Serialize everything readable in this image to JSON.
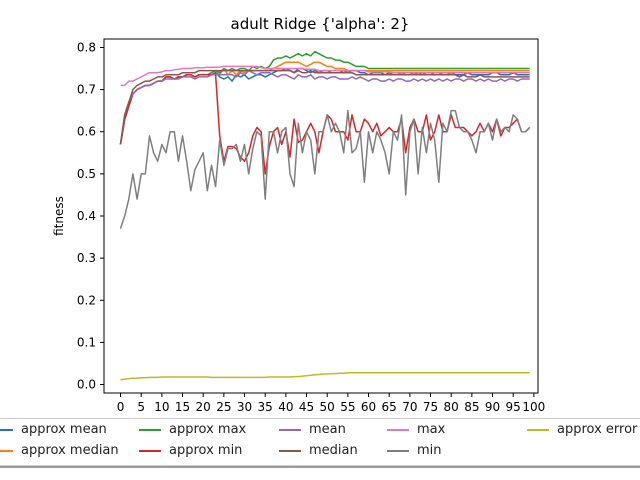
{
  "chart_data": {
    "type": "line",
    "title": "adult Ridge {'alpha': 2}",
    "xlabel": "",
    "ylabel": "fitness",
    "xlim": [
      -4,
      101
    ],
    "ylim": [
      -0.02,
      0.82
    ],
    "x_ticks": [
      0,
      5,
      10,
      15,
      20,
      25,
      30,
      35,
      40,
      45,
      50,
      55,
      60,
      65,
      70,
      75,
      80,
      85,
      90,
      95,
      100
    ],
    "y_ticks": [
      0.0,
      0.1,
      0.2,
      0.3,
      0.4,
      0.5,
      0.6,
      0.7,
      0.8
    ],
    "grid": false,
    "legend_position": "bottom",
    "x": [
      0,
      1,
      2,
      3,
      4,
      5,
      6,
      7,
      8,
      9,
      10,
      11,
      12,
      13,
      14,
      15,
      16,
      17,
      18,
      19,
      20,
      21,
      22,
      23,
      24,
      25,
      26,
      27,
      28,
      29,
      30,
      31,
      32,
      33,
      34,
      35,
      36,
      37,
      38,
      39,
      40,
      41,
      42,
      43,
      44,
      45,
      46,
      47,
      48,
      49,
      50,
      51,
      52,
      53,
      54,
      55,
      56,
      57,
      58,
      59,
      60,
      61,
      62,
      63,
      64,
      65,
      66,
      67,
      68,
      69,
      70,
      71,
      72,
      73,
      74,
      75,
      76,
      77,
      78,
      79,
      80,
      81,
      82,
      83,
      84,
      85,
      86,
      87,
      88,
      89,
      90,
      91,
      92,
      93,
      94,
      95,
      96,
      97,
      98,
      99
    ],
    "series": [
      {
        "name": "approx mean",
        "color": "#1f77b4",
        "values": [
          0.57,
          0.63,
          0.66,
          0.69,
          0.7,
          0.705,
          0.71,
          0.71,
          0.715,
          0.72,
          0.72,
          0.73,
          0.73,
          0.725,
          0.73,
          0.73,
          0.735,
          0.735,
          0.73,
          0.735,
          0.735,
          0.735,
          0.735,
          0.74,
          0.73,
          0.725,
          0.73,
          0.72,
          0.735,
          0.73,
          0.735,
          0.725,
          0.73,
          0.735,
          0.735,
          0.73,
          0.735,
          0.74,
          0.745,
          0.745,
          0.75,
          0.745,
          0.74,
          0.75,
          0.75,
          0.745,
          0.74,
          0.745,
          0.74,
          0.745,
          0.745,
          0.74,
          0.74,
          0.74,
          0.745,
          0.74,
          0.745,
          0.745,
          0.74,
          0.74,
          0.735,
          0.74,
          0.74,
          0.74,
          0.735,
          0.74,
          0.735,
          0.735,
          0.74,
          0.735,
          0.735,
          0.74,
          0.735,
          0.74,
          0.735,
          0.735,
          0.74,
          0.74,
          0.735,
          0.735,
          0.74,
          0.735,
          0.735,
          0.735,
          0.74,
          0.735,
          0.735,
          0.735,
          0.735,
          0.735,
          0.74,
          0.74,
          0.735,
          0.735,
          0.735,
          0.74,
          0.735,
          0.735,
          0.735,
          0.735
        ]
      },
      {
        "name": "approx median",
        "color": "#ff7f0e",
        "values": [
          0.57,
          0.63,
          0.66,
          0.69,
          0.7,
          0.705,
          0.71,
          0.71,
          0.715,
          0.72,
          0.72,
          0.73,
          0.73,
          0.725,
          0.73,
          0.73,
          0.735,
          0.735,
          0.73,
          0.735,
          0.735,
          0.735,
          0.74,
          0.745,
          0.735,
          0.75,
          0.735,
          0.745,
          0.735,
          0.745,
          0.74,
          0.745,
          0.745,
          0.745,
          0.745,
          0.745,
          0.745,
          0.75,
          0.755,
          0.76,
          0.765,
          0.765,
          0.765,
          0.765,
          0.76,
          0.755,
          0.76,
          0.765,
          0.765,
          0.76,
          0.755,
          0.755,
          0.75,
          0.75,
          0.75,
          0.745,
          0.745,
          0.745,
          0.745,
          0.745,
          0.745,
          0.745,
          0.745,
          0.745,
          0.745,
          0.745,
          0.745,
          0.745,
          0.745,
          0.745,
          0.745,
          0.745,
          0.745,
          0.745,
          0.745,
          0.745,
          0.745,
          0.745,
          0.745,
          0.745,
          0.745,
          0.745,
          0.745,
          0.745,
          0.745,
          0.745,
          0.745,
          0.745,
          0.745,
          0.745,
          0.745,
          0.745,
          0.745,
          0.745,
          0.745,
          0.745,
          0.745,
          0.745,
          0.745,
          0.745
        ]
      },
      {
        "name": "approx max",
        "color": "#2ca02c",
        "values": [
          0.57,
          0.63,
          0.66,
          0.69,
          0.7,
          0.705,
          0.71,
          0.71,
          0.715,
          0.72,
          0.72,
          0.73,
          0.73,
          0.725,
          0.73,
          0.73,
          0.735,
          0.735,
          0.73,
          0.735,
          0.735,
          0.735,
          0.74,
          0.745,
          0.74,
          0.75,
          0.745,
          0.75,
          0.745,
          0.75,
          0.75,
          0.745,
          0.755,
          0.75,
          0.755,
          0.75,
          0.755,
          0.77,
          0.775,
          0.775,
          0.78,
          0.775,
          0.78,
          0.785,
          0.78,
          0.785,
          0.78,
          0.79,
          0.785,
          0.78,
          0.775,
          0.775,
          0.77,
          0.77,
          0.765,
          0.765,
          0.76,
          0.755,
          0.755,
          0.755,
          0.75,
          0.75,
          0.75,
          0.75,
          0.75,
          0.75,
          0.75,
          0.75,
          0.75,
          0.75,
          0.75,
          0.75,
          0.75,
          0.75,
          0.75,
          0.75,
          0.75,
          0.75,
          0.75,
          0.75,
          0.75,
          0.75,
          0.75,
          0.75,
          0.75,
          0.75,
          0.75,
          0.75,
          0.75,
          0.75,
          0.75,
          0.75,
          0.75,
          0.75,
          0.75,
          0.75,
          0.75,
          0.75,
          0.75,
          0.75
        ]
      },
      {
        "name": "approx min",
        "color": "#d62728",
        "values": [
          0.57,
          0.63,
          0.66,
          0.69,
          0.7,
          0.705,
          0.71,
          0.71,
          0.715,
          0.72,
          0.72,
          0.73,
          0.73,
          0.725,
          0.73,
          0.73,
          0.735,
          0.735,
          0.73,
          0.735,
          0.735,
          0.735,
          0.735,
          0.735,
          0.59,
          0.53,
          0.565,
          0.565,
          0.56,
          0.54,
          0.53,
          0.55,
          0.59,
          0.61,
          0.6,
          0.5,
          0.565,
          0.6,
          0.61,
          0.57,
          0.6,
          0.54,
          0.63,
          0.575,
          0.58,
          0.6,
          0.62,
          0.6,
          0.55,
          0.6,
          0.64,
          0.63,
          0.6,
          0.6,
          0.6,
          0.58,
          0.64,
          0.6,
          0.6,
          0.63,
          0.62,
          0.6,
          0.62,
          0.59,
          0.6,
          0.61,
          0.6,
          0.6,
          0.63,
          0.55,
          0.61,
          0.63,
          0.6,
          0.6,
          0.64,
          0.58,
          0.6,
          0.64,
          0.6,
          0.6,
          0.64,
          0.61,
          0.61,
          0.61,
          0.6,
          0.59,
          0.6,
          0.62,
          0.6,
          0.62,
          0.6,
          0.63,
          0.59,
          0.61,
          0.61,
          0.62,
          0.63,
          0.6,
          0.6,
          0.61
        ]
      },
      {
        "name": "mean",
        "color": "#9467bd",
        "values": [
          0.57,
          0.64,
          0.67,
          0.69,
          0.7,
          0.705,
          0.71,
          0.71,
          0.715,
          0.72,
          0.72,
          0.725,
          0.725,
          0.725,
          0.725,
          0.73,
          0.73,
          0.73,
          0.725,
          0.73,
          0.73,
          0.73,
          0.735,
          0.735,
          0.735,
          0.735,
          0.735,
          0.735,
          0.73,
          0.74,
          0.735,
          0.745,
          0.74,
          0.735,
          0.74,
          0.74,
          0.74,
          0.735,
          0.73,
          0.735,
          0.735,
          0.73,
          0.725,
          0.735,
          0.73,
          0.73,
          0.735,
          0.725,
          0.73,
          0.73,
          0.725,
          0.73,
          0.73,
          0.725,
          0.725,
          0.725,
          0.73,
          0.725,
          0.73,
          0.725,
          0.72,
          0.725,
          0.725,
          0.72,
          0.72,
          0.725,
          0.72,
          0.725,
          0.725,
          0.72,
          0.72,
          0.725,
          0.72,
          0.725,
          0.72,
          0.725,
          0.72,
          0.725,
          0.72,
          0.725,
          0.72,
          0.725,
          0.725,
          0.72,
          0.725,
          0.725,
          0.72,
          0.725,
          0.72,
          0.725,
          0.72,
          0.72,
          0.725,
          0.72,
          0.725,
          0.725,
          0.72,
          0.725,
          0.725,
          0.725
        ]
      },
      {
        "name": "median",
        "color": "#8c564b",
        "values": [
          0.57,
          0.64,
          0.67,
          0.7,
          0.71,
          0.715,
          0.72,
          0.72,
          0.725,
          0.73,
          0.73,
          0.735,
          0.735,
          0.735,
          0.735,
          0.74,
          0.74,
          0.74,
          0.74,
          0.745,
          0.745,
          0.745,
          0.745,
          0.745,
          0.745,
          0.745,
          0.745,
          0.745,
          0.745,
          0.745,
          0.745,
          0.745,
          0.745,
          0.745,
          0.745,
          0.745,
          0.745,
          0.745,
          0.745,
          0.745,
          0.745,
          0.745,
          0.74,
          0.745,
          0.74,
          0.74,
          0.745,
          0.74,
          0.74,
          0.74,
          0.74,
          0.74,
          0.74,
          0.74,
          0.74,
          0.74,
          0.74,
          0.735,
          0.735,
          0.735,
          0.735,
          0.735,
          0.735,
          0.735,
          0.735,
          0.735,
          0.735,
          0.735,
          0.735,
          0.735,
          0.735,
          0.735,
          0.735,
          0.735,
          0.735,
          0.735,
          0.735,
          0.735,
          0.735,
          0.735,
          0.735,
          0.735,
          0.73,
          0.735,
          0.73,
          0.73,
          0.73,
          0.735,
          0.73,
          0.73,
          0.73,
          0.73,
          0.73,
          0.73,
          0.73,
          0.73,
          0.73,
          0.73,
          0.73,
          0.73
        ]
      },
      {
        "name": "max",
        "color": "#e377c2",
        "values": [
          0.71,
          0.71,
          0.72,
          0.72,
          0.725,
          0.73,
          0.735,
          0.74,
          0.74,
          0.74,
          0.742,
          0.745,
          0.745,
          0.747,
          0.748,
          0.75,
          0.75,
          0.75,
          0.752,
          0.752,
          0.752,
          0.753,
          0.753,
          0.753,
          0.753,
          0.755,
          0.755,
          0.755,
          0.755,
          0.755,
          0.755,
          0.755,
          0.755,
          0.755,
          0.752,
          0.75,
          0.75,
          0.75,
          0.75,
          0.75,
          0.75,
          0.75,
          0.75,
          0.75,
          0.75,
          0.748,
          0.748,
          0.748,
          0.745,
          0.745,
          0.745,
          0.745,
          0.745,
          0.745,
          0.745,
          0.745,
          0.745,
          0.745,
          0.745,
          0.745,
          0.742,
          0.742,
          0.742,
          0.742,
          0.742,
          0.742,
          0.74,
          0.74,
          0.74,
          0.74,
          0.74,
          0.74,
          0.74,
          0.74,
          0.74,
          0.74,
          0.74,
          0.74,
          0.74,
          0.74,
          0.74,
          0.74,
          0.74,
          0.74,
          0.74,
          0.74,
          0.74,
          0.74,
          0.74,
          0.74,
          0.74,
          0.74,
          0.74,
          0.74,
          0.74,
          0.74,
          0.74,
          0.74,
          0.74,
          0.74
        ]
      },
      {
        "name": "min",
        "color": "#7f7f7f",
        "values": [
          0.37,
          0.4,
          0.44,
          0.5,
          0.44,
          0.5,
          0.5,
          0.59,
          0.55,
          0.53,
          0.57,
          0.55,
          0.6,
          0.6,
          0.53,
          0.59,
          0.53,
          0.46,
          0.51,
          0.53,
          0.55,
          0.46,
          0.52,
          0.47,
          0.58,
          0.52,
          0.56,
          0.56,
          0.57,
          0.53,
          0.57,
          0.5,
          0.56,
          0.6,
          0.59,
          0.44,
          0.6,
          0.6,
          0.55,
          0.6,
          0.61,
          0.5,
          0.47,
          0.62,
          0.55,
          0.6,
          0.58,
          0.5,
          0.6,
          0.6,
          0.64,
          0.6,
          0.62,
          0.6,
          0.55,
          0.65,
          0.55,
          0.56,
          0.6,
          0.48,
          0.6,
          0.55,
          0.6,
          0.58,
          0.55,
          0.5,
          0.6,
          0.58,
          0.64,
          0.45,
          0.6,
          0.63,
          0.5,
          0.61,
          0.55,
          0.62,
          0.58,
          0.48,
          0.62,
          0.6,
          0.65,
          0.65,
          0.61,
          0.6,
          0.6,
          0.58,
          0.55,
          0.6,
          0.6,
          0.62,
          0.58,
          0.63,
          0.6,
          0.61,
          0.6,
          0.64,
          0.63,
          0.6,
          0.6,
          0.61
        ]
      },
      {
        "name": "approx error",
        "color": "#bcbd22",
        "values": [
          0.011,
          0.013,
          0.014,
          0.015,
          0.015,
          0.016,
          0.016,
          0.017,
          0.017,
          0.017,
          0.018,
          0.018,
          0.018,
          0.018,
          0.018,
          0.018,
          0.018,
          0.018,
          0.018,
          0.018,
          0.018,
          0.018,
          0.017,
          0.017,
          0.017,
          0.017,
          0.017,
          0.017,
          0.017,
          0.017,
          0.017,
          0.017,
          0.017,
          0.017,
          0.017,
          0.017,
          0.018,
          0.018,
          0.018,
          0.018,
          0.018,
          0.018,
          0.019,
          0.019,
          0.02,
          0.021,
          0.022,
          0.023,
          0.024,
          0.025,
          0.025,
          0.026,
          0.026,
          0.027,
          0.027,
          0.028,
          0.028,
          0.028,
          0.028,
          0.028,
          0.028,
          0.028,
          0.028,
          0.028,
          0.028,
          0.028,
          0.028,
          0.028,
          0.028,
          0.028,
          0.028,
          0.028,
          0.028,
          0.028,
          0.028,
          0.028,
          0.028,
          0.028,
          0.028,
          0.028,
          0.028,
          0.028,
          0.028,
          0.028,
          0.028,
          0.028,
          0.028,
          0.028,
          0.028,
          0.028,
          0.028,
          0.028,
          0.028,
          0.028,
          0.028,
          0.028,
          0.028,
          0.028,
          0.028,
          0.028
        ]
      }
    ]
  }
}
